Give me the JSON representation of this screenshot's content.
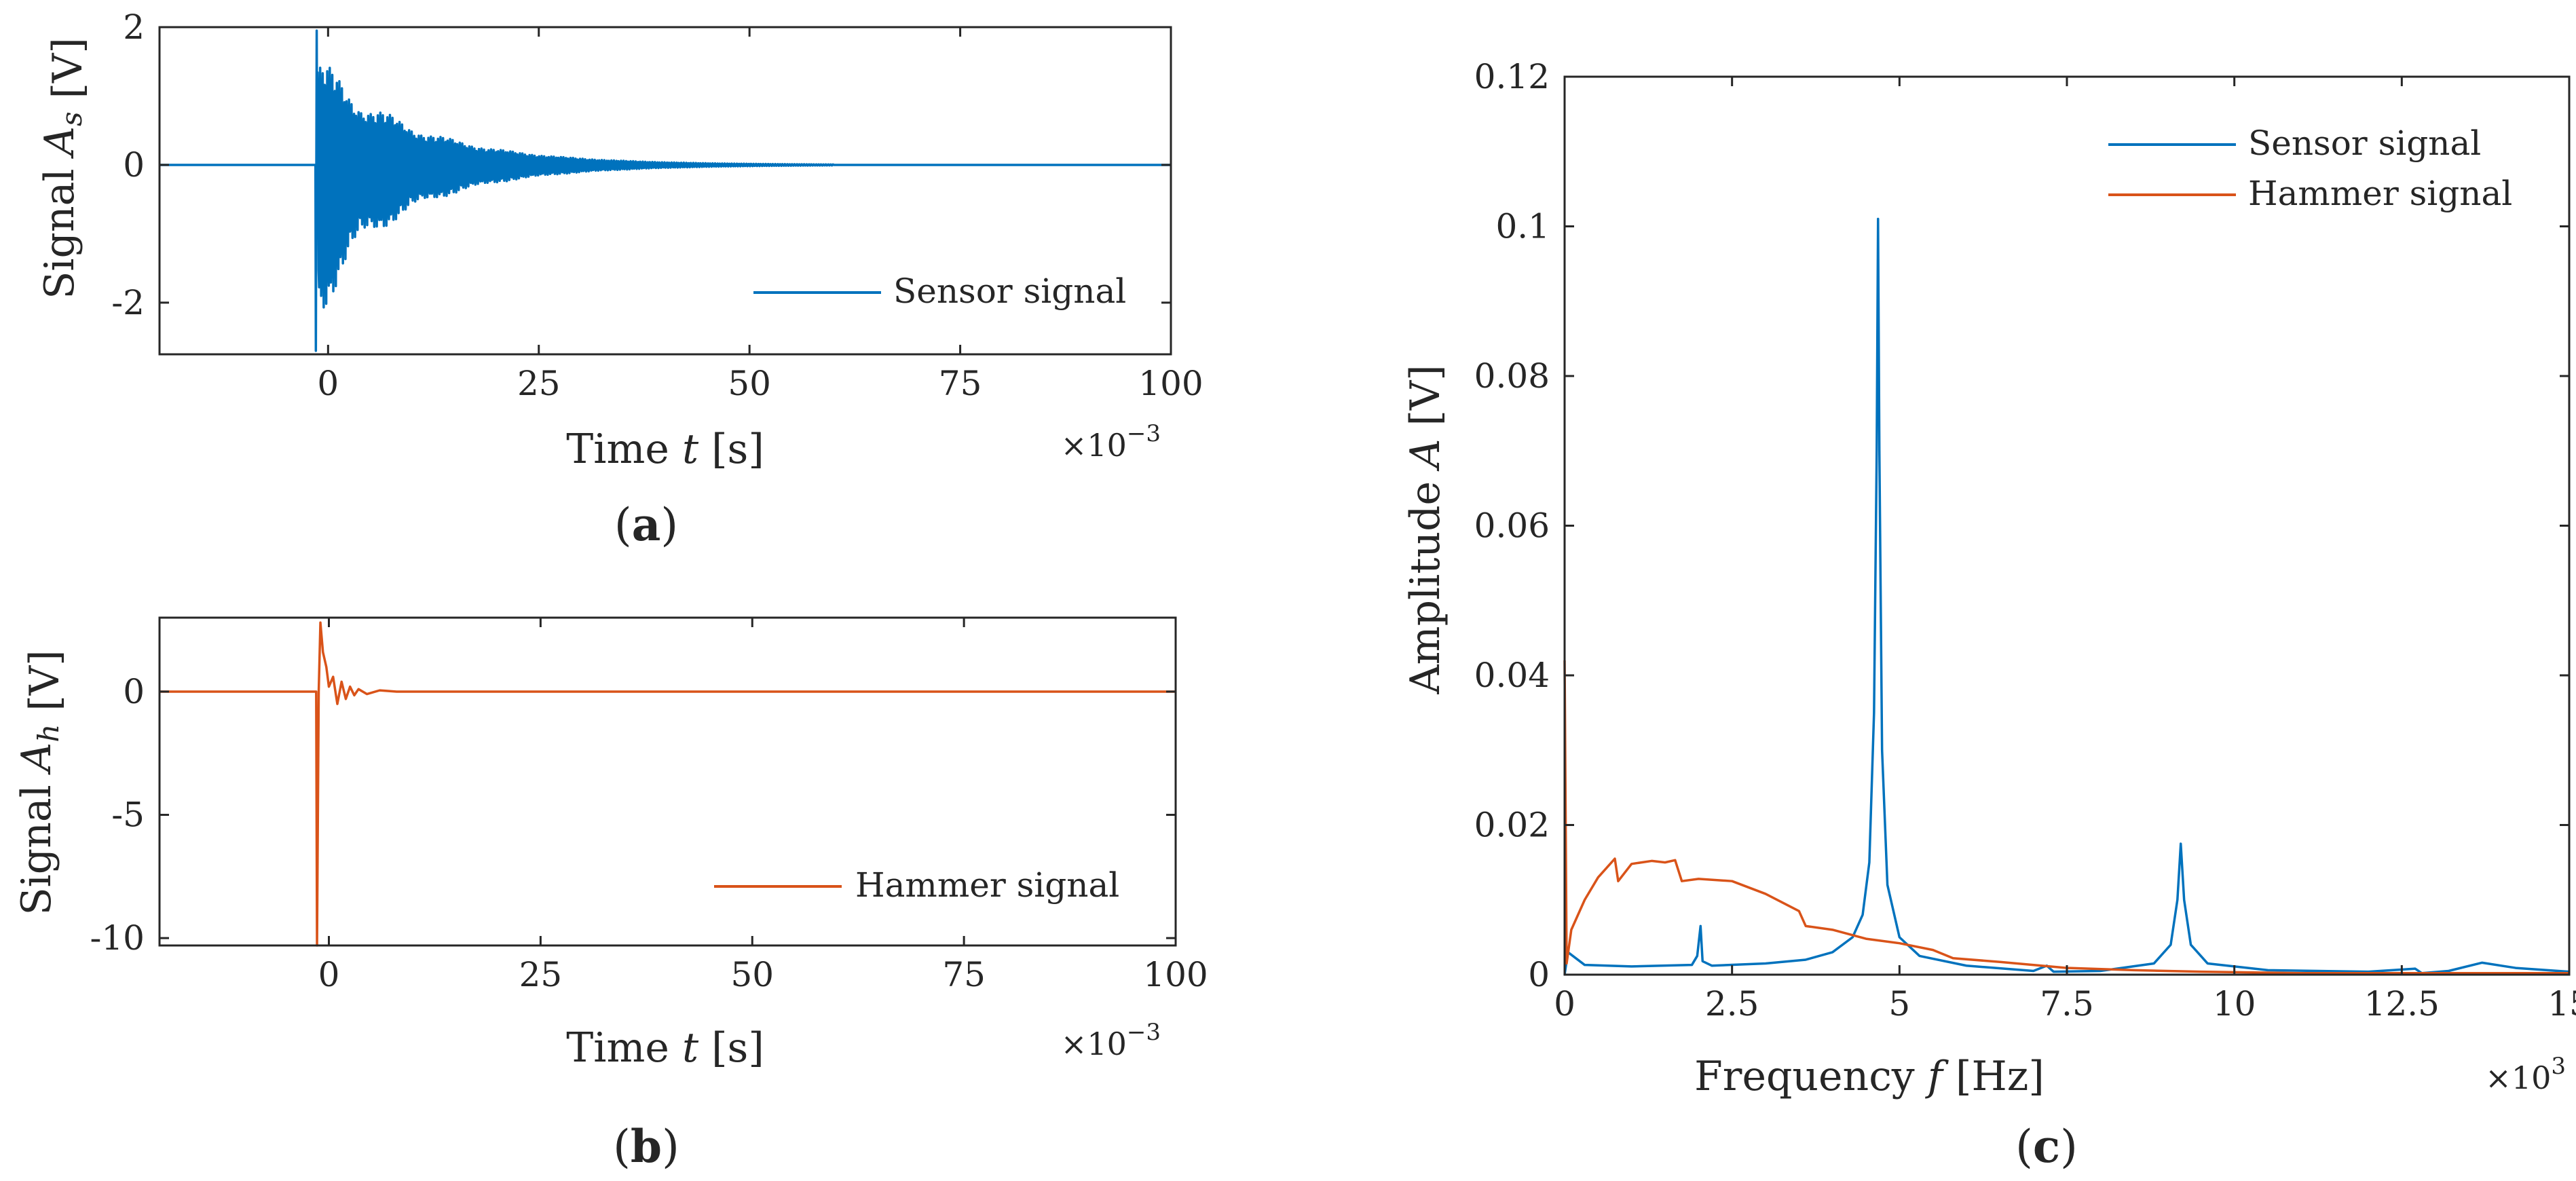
{
  "colors": {
    "sensor": "#0072BD",
    "hammer": "#D95319",
    "axis": "#262626"
  },
  "chart_data": [
    {
      "id": "a",
      "type": "line",
      "panel_label": "a",
      "xlabel": "Time t [s]",
      "ylabel": "Signal A_s [V]",
      "xlim": [
        -20,
        100
      ],
      "ylim": [
        -2.75,
        2
      ],
      "x_multiplier": "×10^-3",
      "xticks": [
        0,
        25,
        50,
        75,
        100
      ],
      "xtick_labels": [
        "0",
        "25",
        "50",
        "75",
        "100"
      ],
      "yticks": [
        -2,
        0,
        2
      ],
      "ytick_labels": [
        "-2",
        "0",
        "2"
      ],
      "legend": {
        "position": "bottom-right",
        "entries": [
          "Sensor signal"
        ]
      },
      "series": [
        {
          "name": "Sensor signal",
          "color_key": "sensor",
          "signal": "decaying_oscillation",
          "onset_ms": -1.5,
          "initial_amplitude": 1.5,
          "min_value": -2.7,
          "max_value": 1.95,
          "settle_ms": 60
        }
      ]
    },
    {
      "id": "b",
      "type": "line",
      "panel_label": "b",
      "xlabel": "Time t [s]",
      "ylabel": "Signal A_h [V]",
      "xlim": [
        -20,
        100
      ],
      "ylim": [
        -10.3,
        3
      ],
      "x_multiplier": "×10^-3",
      "xticks": [
        0,
        25,
        50,
        75,
        100
      ],
      "xtick_labels": [
        "0",
        "25",
        "50",
        "75",
        "100"
      ],
      "yticks": [
        -10,
        -5,
        0
      ],
      "ytick_labels": [
        "-10",
        "-5",
        "0"
      ],
      "legend": {
        "position": "bottom-right",
        "entries": [
          "Hammer signal"
        ]
      },
      "series": [
        {
          "name": "Hammer signal",
          "color_key": "hammer",
          "signal": "impulse",
          "points": [
            [
              -20,
              0
            ],
            [
              -1.5,
              0
            ],
            [
              -1.4,
              -10.3
            ],
            [
              -1.2,
              0
            ],
            [
              -1.0,
              2.8
            ],
            [
              -0.7,
              1.6
            ],
            [
              -0.3,
              1.0
            ],
            [
              0.0,
              0.2
            ],
            [
              0.5,
              0.6
            ],
            [
              1.0,
              -0.5
            ],
            [
              1.5,
              0.4
            ],
            [
              2.0,
              -0.3
            ],
            [
              2.5,
              0.2
            ],
            [
              3.0,
              -0.15
            ],
            [
              3.5,
              0.1
            ],
            [
              4.5,
              -0.1
            ],
            [
              6.0,
              0.05
            ],
            [
              8.0,
              0
            ],
            [
              100,
              0
            ]
          ]
        }
      ]
    },
    {
      "id": "c",
      "type": "line",
      "panel_label": "c",
      "xlabel": "Frequency f [Hz]",
      "ylabel": "Amplitude A [V]",
      "xlim": [
        0,
        15
      ],
      "ylim": [
        0,
        0.12
      ],
      "x_multiplier": "×10^3",
      "xticks": [
        0,
        2.5,
        5,
        7.5,
        10,
        12.5,
        15
      ],
      "xtick_labels": [
        "0",
        "2.5",
        "5",
        "7.5",
        "10",
        "12.5",
        "15"
      ],
      "yticks": [
        0,
        0.02,
        0.04,
        0.06,
        0.08,
        0.1,
        0.12
      ],
      "ytick_labels": [
        "0",
        "0.02",
        "0.04",
        "0.06",
        "0.08",
        "0.1",
        "0.12"
      ],
      "legend": {
        "position": "top-right",
        "entries": [
          "Sensor signal",
          "Hammer signal"
        ]
      },
      "series": [
        {
          "name": "Sensor signal",
          "color_key": "sensor",
          "points": [
            [
              0,
              0.0
            ],
            [
              0.05,
              0.003
            ],
            [
              0.3,
              0.0013
            ],
            [
              1.0,
              0.0011
            ],
            [
              1.9,
              0.0013
            ],
            [
              1.98,
              0.0025
            ],
            [
              2.03,
              0.0065
            ],
            [
              2.06,
              0.0018
            ],
            [
              2.2,
              0.0012
            ],
            [
              3.0,
              0.0015
            ],
            [
              3.6,
              0.002
            ],
            [
              4.0,
              0.003
            ],
            [
              4.3,
              0.005
            ],
            [
              4.45,
              0.008
            ],
            [
              4.55,
              0.015
            ],
            [
              4.62,
              0.035
            ],
            [
              4.66,
              0.07
            ],
            [
              4.68,
              0.101
            ],
            [
              4.7,
              0.07
            ],
            [
              4.74,
              0.03
            ],
            [
              4.82,
              0.012
            ],
            [
              5.0,
              0.005
            ],
            [
              5.3,
              0.0025
            ],
            [
              6.0,
              0.0012
            ],
            [
              7.0,
              0.0005
            ],
            [
              7.2,
              0.0012
            ],
            [
              7.3,
              0.0004
            ],
            [
              8.0,
              0.0005
            ],
            [
              8.8,
              0.0015
            ],
            [
              9.05,
              0.004
            ],
            [
              9.15,
              0.01
            ],
            [
              9.2,
              0.0175
            ],
            [
              9.25,
              0.01
            ],
            [
              9.35,
              0.004
            ],
            [
              9.6,
              0.0015
            ],
            [
              10.5,
              0.0006
            ],
            [
              12.0,
              0.0004
            ],
            [
              12.7,
              0.0008
            ],
            [
              12.8,
              0.0002
            ],
            [
              13.2,
              0.0005
            ],
            [
              13.7,
              0.0016
            ],
            [
              14.2,
              0.0009
            ],
            [
              15.0,
              0.0004
            ]
          ]
        },
        {
          "name": "Hammer signal",
          "color_key": "hammer",
          "points": [
            [
              0,
              0.042
            ],
            [
              0.03,
              0.0015
            ],
            [
              0.1,
              0.006
            ],
            [
              0.3,
              0.01
            ],
            [
              0.5,
              0.013
            ],
            [
              0.75,
              0.0155
            ],
            [
              0.8,
              0.0125
            ],
            [
              1.0,
              0.0148
            ],
            [
              1.3,
              0.0152
            ],
            [
              1.5,
              0.015
            ],
            [
              1.65,
              0.0153
            ],
            [
              1.75,
              0.0125
            ],
            [
              2.0,
              0.0128
            ],
            [
              2.5,
              0.0125
            ],
            [
              3.0,
              0.0108
            ],
            [
              3.5,
              0.0085
            ],
            [
              3.6,
              0.0065
            ],
            [
              4.0,
              0.006
            ],
            [
              4.5,
              0.0048
            ],
            [
              5.0,
              0.0042
            ],
            [
              5.5,
              0.0033
            ],
            [
              5.8,
              0.0022
            ],
            [
              6.5,
              0.0017
            ],
            [
              7.5,
              0.0009
            ],
            [
              8.5,
              0.0006
            ],
            [
              9.5,
              0.0004
            ],
            [
              11.0,
              0.0002
            ],
            [
              15.0,
              0.0002
            ]
          ]
        }
      ]
    }
  ]
}
